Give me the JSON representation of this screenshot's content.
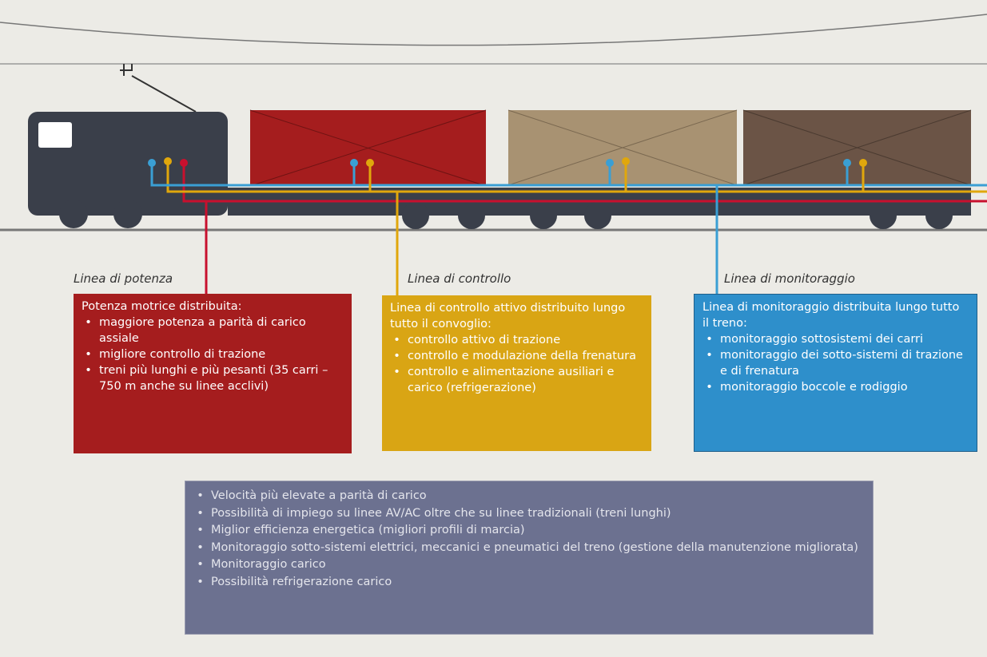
{
  "lines": [
    {
      "label": "Linea di potenza",
      "heading": "Potenza motrice distribuita:",
      "items": [
        "maggiore potenza a parità di carico assiale",
        "migliore controllo di trazione",
        "treni più lunghi e più pesanti (35 carri – 750 m anche su linee acclivi)"
      ]
    },
    {
      "label": "Linea di controllo",
      "heading": "Linea di controllo attivo distribuito lungo tutto il convoglio:",
      "items": [
        "controllo attivo di trazione",
        "controllo e modulazione della frenatura",
        "controllo e alimentazione ausiliari e carico (refrigerazione)"
      ]
    },
    {
      "label": "Linea di monitoraggio",
      "heading": "Linea di monitoraggio distribuita lungo tutto il treno:",
      "items": [
        "monitoraggio sottosistemi dei carri",
        "monitoraggio dei sotto-sistemi di trazione e di frenatura",
        "monitoraggio boccole e rodiggio"
      ]
    }
  ],
  "benefits": [
    "Velocità più elevate a parità di carico",
    "Possibilità di impiego su linee AV/AC oltre che su linee tradizionali (treni lunghi)",
    "Miglior efficienza energetica (migliori profili di marcia)",
    "Monitoraggio sotto-sistemi elettrici, meccanici e pneumatici del treno (gestione della manutenzione migliorata)",
    "Monitoraggio carico",
    "Possibilità refrigerazione carico"
  ]
}
